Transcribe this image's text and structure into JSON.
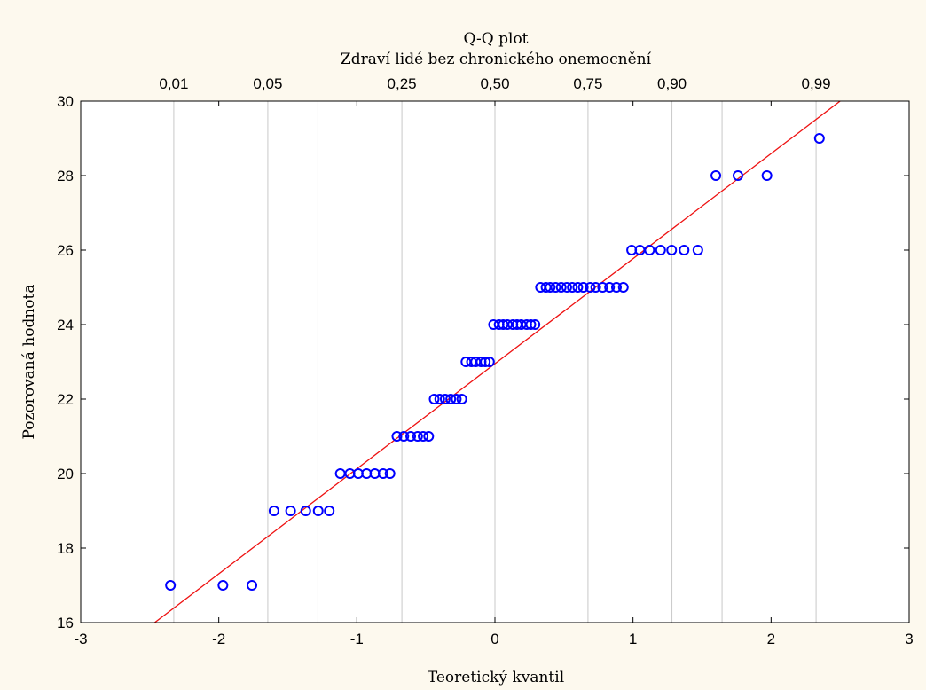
{
  "chart_data": {
    "type": "scatter",
    "title": "Q-Q plot",
    "subtitle": "Zdraví lidé bez chronického onemocnění",
    "xlabel": "Teoretický kvantil",
    "ylabel": "Pozorovaná hodnota",
    "xlim": [
      -3,
      3
    ],
    "ylim": [
      16,
      30
    ],
    "x_ticks": [
      -3,
      -2,
      -1,
      0,
      1,
      2,
      3
    ],
    "x_tick_labels": [
      "-3",
      "-2",
      "-1",
      "0",
      "1",
      "2",
      "3"
    ],
    "y_ticks": [
      16,
      18,
      20,
      22,
      24,
      26,
      28,
      30
    ],
    "y_tick_labels": [
      "16",
      "18",
      "20",
      "22",
      "24",
      "26",
      "28",
      "30"
    ],
    "probability_ticks": [
      {
        "label": "0,01",
        "z": -2.326
      },
      {
        "label": "0,05",
        "z": -1.645
      },
      {
        "label": "0,25",
        "z": -0.674
      },
      {
        "label": "0,50",
        "z": 0
      },
      {
        "label": "0,75",
        "z": 0.674
      },
      {
        "label": "0,90",
        "z": 1.282
      },
      {
        "label": "0,99",
        "z": 2.326
      }
    ],
    "probability_gridlines": [
      -2.326,
      -1.645,
      -1.282,
      -0.674,
      0,
      0.674,
      1.282,
      1.645,
      2.326
    ],
    "reference_line": {
      "x": [
        -2.5,
        2.5
      ],
      "y": [
        15.9,
        30.0
      ]
    },
    "points": [
      {
        "x": -2.35,
        "y": 17
      },
      {
        "x": -1.97,
        "y": 17
      },
      {
        "x": -1.76,
        "y": 17
      },
      {
        "x": -1.6,
        "y": 19
      },
      {
        "x": -1.48,
        "y": 19
      },
      {
        "x": -1.37,
        "y": 19
      },
      {
        "x": -1.28,
        "y": 19
      },
      {
        "x": -1.2,
        "y": 19
      },
      {
        "x": -1.12,
        "y": 20
      },
      {
        "x": -1.05,
        "y": 20
      },
      {
        "x": -0.99,
        "y": 20
      },
      {
        "x": -0.93,
        "y": 20
      },
      {
        "x": -0.87,
        "y": 20
      },
      {
        "x": -0.81,
        "y": 20
      },
      {
        "x": -0.76,
        "y": 20
      },
      {
        "x": -0.71,
        "y": 21
      },
      {
        "x": -0.66,
        "y": 21
      },
      {
        "x": -0.61,
        "y": 21
      },
      {
        "x": -0.56,
        "y": 21
      },
      {
        "x": -0.52,
        "y": 21
      },
      {
        "x": -0.48,
        "y": 21
      },
      {
        "x": -0.44,
        "y": 22
      },
      {
        "x": -0.4,
        "y": 22
      },
      {
        "x": -0.36,
        "y": 22
      },
      {
        "x": -0.32,
        "y": 22
      },
      {
        "x": -0.28,
        "y": 22
      },
      {
        "x": -0.24,
        "y": 22
      },
      {
        "x": -0.21,
        "y": 23
      },
      {
        "x": -0.17,
        "y": 23
      },
      {
        "x": -0.14,
        "y": 23
      },
      {
        "x": -0.1,
        "y": 23
      },
      {
        "x": -0.07,
        "y": 23
      },
      {
        "x": -0.04,
        "y": 23
      },
      {
        "x": -0.01,
        "y": 24
      },
      {
        "x": 0.03,
        "y": 24
      },
      {
        "x": 0.06,
        "y": 24
      },
      {
        "x": 0.09,
        "y": 24
      },
      {
        "x": 0.13,
        "y": 24
      },
      {
        "x": 0.16,
        "y": 24
      },
      {
        "x": 0.19,
        "y": 24
      },
      {
        "x": 0.23,
        "y": 24
      },
      {
        "x": 0.26,
        "y": 24
      },
      {
        "x": 0.29,
        "y": 24
      },
      {
        "x": 0.33,
        "y": 25
      },
      {
        "x": 0.37,
        "y": 25
      },
      {
        "x": 0.4,
        "y": 25
      },
      {
        "x": 0.44,
        "y": 25
      },
      {
        "x": 0.48,
        "y": 25
      },
      {
        "x": 0.52,
        "y": 25
      },
      {
        "x": 0.56,
        "y": 25
      },
      {
        "x": 0.6,
        "y": 25
      },
      {
        "x": 0.64,
        "y": 25
      },
      {
        "x": 0.69,
        "y": 25
      },
      {
        "x": 0.73,
        "y": 25
      },
      {
        "x": 0.78,
        "y": 25
      },
      {
        "x": 0.83,
        "y": 25
      },
      {
        "x": 0.88,
        "y": 25
      },
      {
        "x": 0.93,
        "y": 25
      },
      {
        "x": 0.99,
        "y": 26
      },
      {
        "x": 1.05,
        "y": 26
      },
      {
        "x": 1.12,
        "y": 26
      },
      {
        "x": 1.2,
        "y": 26
      },
      {
        "x": 1.28,
        "y": 26
      },
      {
        "x": 1.37,
        "y": 26
      },
      {
        "x": 1.47,
        "y": 26
      },
      {
        "x": 1.6,
        "y": 28
      },
      {
        "x": 1.76,
        "y": 28
      },
      {
        "x": 1.97,
        "y": 28
      },
      {
        "x": 2.35,
        "y": 29
      }
    ],
    "grid": "vertical",
    "colors": {
      "background": "#fdf9ee",
      "plot_background": "#ffffff",
      "points": "#0000ff",
      "reference_line": "#ee1111",
      "grid": "#c8c8c8",
      "axis": "#000000"
    }
  }
}
